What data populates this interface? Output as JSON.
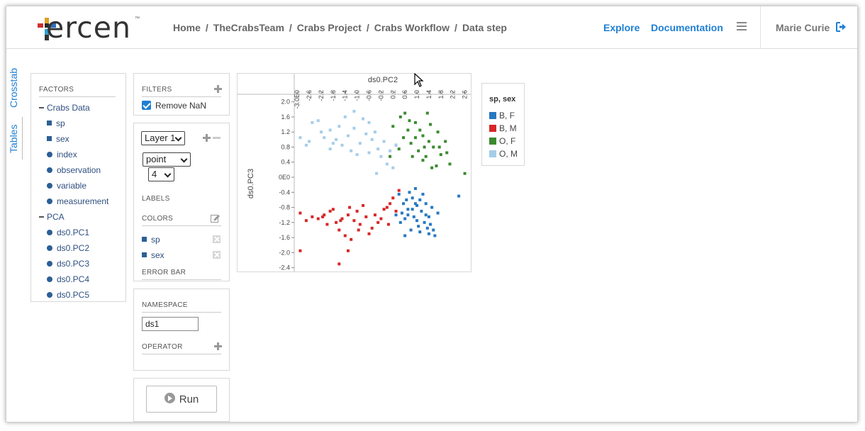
{
  "header": {
    "logo_text": "ercen",
    "logo_tm": "™",
    "breadcrumb": [
      "Home",
      "TheCrabsTeam",
      "Crabs Project",
      "Crabs Workflow",
      "Data step"
    ],
    "breadcrumb_sep": "/",
    "nav": {
      "explore": "Explore",
      "documentation": "Documentation"
    },
    "user": "Marie Curie"
  },
  "vtabs": {
    "crosstab": "Crosstab",
    "tables": "Tables"
  },
  "factors": {
    "title": "FACTORS",
    "groups": [
      {
        "label": "Crabs Data",
        "items": [
          {
            "label": "sp",
            "kind": "square"
          },
          {
            "label": "sex",
            "kind": "square"
          },
          {
            "label": "index",
            "kind": "dot"
          },
          {
            "label": "observation",
            "kind": "dot"
          },
          {
            "label": "variable",
            "kind": "dot"
          },
          {
            "label": "measurement",
            "kind": "dot"
          }
        ]
      },
      {
        "label": "PCA",
        "items": [
          {
            "label": "ds0.PC1",
            "kind": "dot"
          },
          {
            "label": "ds0.PC2",
            "kind": "dot"
          },
          {
            "label": "ds0.PC3",
            "kind": "dot"
          },
          {
            "label": "ds0.PC4",
            "kind": "dot"
          },
          {
            "label": "ds0.PC5",
            "kind": "dot"
          }
        ]
      }
    ]
  },
  "filters": {
    "title": "FILTERS",
    "remove_nan": "Remove NaN",
    "remove_nan_checked": true
  },
  "layer": {
    "layer_select": "Layer 1",
    "geom_select": "point",
    "size_select": "4",
    "labels_title": "LABELS",
    "colors_title": "COLORS",
    "colors": [
      "sp",
      "sex"
    ],
    "error_bar_title": "ERROR BAR"
  },
  "namespace": {
    "title": "NAMESPACE",
    "value": "ds1",
    "operator_title": "OPERATOR"
  },
  "run": {
    "label": "Run"
  },
  "legend": {
    "title": "sp, sex",
    "items": [
      {
        "label": "B, F",
        "color": "#2878c0"
      },
      {
        "label": "B, M",
        "color": "#d62728"
      },
      {
        "label": "O, F",
        "color": "#3a8a2e"
      },
      {
        "label": "O, M",
        "color": "#a6cde8"
      }
    ]
  },
  "chart_data": {
    "type": "scatter",
    "xlabel": "ds0.PC2",
    "ylabel": "ds0.PC3",
    "xlim": [
      -3.1,
      2.8
    ],
    "ylim": [
      -2.5,
      2.2
    ],
    "x_ticks": [
      "-3.0E0",
      "-2.6",
      "-2.2",
      "-1.8",
      "-1.4",
      "-1.0",
      "-0.6",
      "-0.2",
      "0.2",
      "0.6",
      "1.0",
      "1.4",
      "1.8",
      "2.2",
      "2.6"
    ],
    "y_ticks": [
      "2.0",
      "1.6",
      "1.2",
      "0.8",
      "0.4",
      "0E0",
      "-0.4",
      "-0.8",
      "-1.2",
      "-1.6",
      "-2.0",
      "-2.4"
    ],
    "series": [
      {
        "name": "B, F",
        "color": "#2878c0",
        "points": [
          [
            0.4,
            -0.45
          ],
          [
            0.55,
            -0.7
          ],
          [
            0.7,
            -0.85
          ],
          [
            0.85,
            -0.55
          ],
          [
            1.0,
            -0.75
          ],
          [
            1.15,
            -0.9
          ],
          [
            1.3,
            -1.0
          ],
          [
            0.9,
            -1.05
          ],
          [
            0.6,
            -1.1
          ],
          [
            1.05,
            -1.3
          ],
          [
            1.25,
            -1.2
          ],
          [
            1.4,
            -1.05
          ],
          [
            1.5,
            -0.8
          ],
          [
            0.75,
            -0.4
          ],
          [
            0.95,
            -0.3
          ],
          [
            1.1,
            -0.6
          ],
          [
            1.35,
            -1.35
          ],
          [
            0.5,
            -0.95
          ],
          [
            0.8,
            -1.4
          ],
          [
            1.6,
            -1.55
          ],
          [
            1.2,
            -0.45
          ],
          [
            0.65,
            -0.6
          ],
          [
            1.45,
            -1.25
          ],
          [
            1.0,
            -1.15
          ],
          [
            1.7,
            -0.95
          ],
          [
            2.4,
            -0.5
          ],
          [
            0.85,
            -0.85
          ],
          [
            1.3,
            -0.7
          ],
          [
            0.45,
            -1.2
          ],
          [
            1.55,
            -1.4
          ],
          [
            1.1,
            -1.45
          ],
          [
            0.7,
            -1.0
          ],
          [
            0.95,
            -0.7
          ],
          [
            1.4,
            -1.5
          ],
          [
            0.6,
            -1.55
          ],
          [
            0.3,
            -1.0
          ]
        ]
      },
      {
        "name": "B, M",
        "color": "#d62728",
        "points": [
          [
            -2.9,
            -0.95
          ],
          [
            -2.7,
            -1.15
          ],
          [
            -2.5,
            -1.05
          ],
          [
            -2.3,
            -1.1
          ],
          [
            -2.1,
            -1.0
          ],
          [
            -1.9,
            -0.9
          ],
          [
            -1.7,
            -1.2
          ],
          [
            -1.5,
            -1.1
          ],
          [
            -1.3,
            -1.0
          ],
          [
            -1.1,
            -1.15
          ],
          [
            -0.9,
            -1.25
          ],
          [
            -0.7,
            -1.05
          ],
          [
            -0.5,
            -1.35
          ],
          [
            -0.3,
            -1.2
          ],
          [
            -0.1,
            -0.85
          ],
          [
            0.1,
            -0.7
          ],
          [
            0.3,
            -0.9
          ],
          [
            -1.6,
            -1.4
          ],
          [
            -1.4,
            -1.55
          ],
          [
            -1.2,
            -1.65
          ],
          [
            -2.0,
            -1.25
          ],
          [
            -1.8,
            -0.85
          ],
          [
            -1.0,
            -0.9
          ],
          [
            -0.8,
            -0.75
          ],
          [
            -0.6,
            -1.5
          ],
          [
            -0.2,
            -1.1
          ],
          [
            0.0,
            -0.8
          ],
          [
            0.2,
            -0.55
          ],
          [
            -2.9,
            -1.95
          ],
          [
            -1.6,
            -2.3
          ],
          [
            -1.3,
            -1.95
          ],
          [
            -0.4,
            -1.0
          ],
          [
            -1.55,
            -1.15
          ],
          [
            -0.95,
            -1.4
          ],
          [
            0.4,
            -0.35
          ],
          [
            0.05,
            -1.25
          ],
          [
            -2.15,
            -1.05
          ],
          [
            -1.25,
            -0.8
          ]
        ]
      },
      {
        "name": "O, F",
        "color": "#3a8a2e",
        "points": [
          [
            0.2,
            1.35
          ],
          [
            0.45,
            1.6
          ],
          [
            0.7,
            1.25
          ],
          [
            0.95,
            1.45
          ],
          [
            1.2,
            1.1
          ],
          [
            1.45,
            1.4
          ],
          [
            1.7,
            1.2
          ],
          [
            1.95,
            0.95
          ],
          [
            0.8,
            0.9
          ],
          [
            1.05,
            0.7
          ],
          [
            1.3,
            0.55
          ],
          [
            1.55,
            0.8
          ],
          [
            1.8,
            0.6
          ],
          [
            2.1,
            0.35
          ],
          [
            2.6,
            0.1
          ],
          [
            0.55,
            1.05
          ],
          [
            0.3,
            0.85
          ],
          [
            1.1,
            1.25
          ],
          [
            1.4,
            0.95
          ],
          [
            1.65,
            0.3
          ],
          [
            0.85,
            0.55
          ],
          [
            1.2,
            0.45
          ],
          [
            0.6,
            1.7
          ],
          [
            1.35,
            1.7
          ],
          [
            1.75,
            0.8
          ],
          [
            2.0,
            0.65
          ],
          [
            1.5,
            0.25
          ],
          [
            0.95,
            1.05
          ],
          [
            1.25,
            0.8
          ],
          [
            0.4,
            0.75
          ],
          [
            0.75,
            1.5
          ],
          [
            0.1,
            0.55
          ]
        ]
      },
      {
        "name": "O, M",
        "color": "#a6cde8",
        "points": [
          [
            -2.9,
            1.05
          ],
          [
            -2.6,
            0.95
          ],
          [
            -2.3,
            1.5
          ],
          [
            -2.1,
            1.05
          ],
          [
            -1.9,
            1.25
          ],
          [
            -1.7,
            1.0
          ],
          [
            -1.5,
            0.85
          ],
          [
            -1.3,
            1.1
          ],
          [
            -1.1,
            1.3
          ],
          [
            -0.9,
            0.9
          ],
          [
            -0.7,
            1.15
          ],
          [
            -0.5,
            1.0
          ],
          [
            -0.3,
            0.75
          ],
          [
            -0.1,
            0.95
          ],
          [
            0.1,
            0.7
          ],
          [
            0.3,
            0.85
          ],
          [
            -1.6,
            1.35
          ],
          [
            -1.2,
            0.7
          ],
          [
            -0.8,
            1.55
          ],
          [
            -0.6,
            0.65
          ],
          [
            -2.2,
            1.2
          ],
          [
            -1.8,
            0.9
          ],
          [
            -1.0,
            0.6
          ],
          [
            -0.4,
            1.2
          ],
          [
            0.0,
            0.35
          ],
          [
            -1.4,
            1.6
          ],
          [
            -2.5,
            1.45
          ],
          [
            -0.2,
            0.55
          ],
          [
            -1.1,
            1.75
          ],
          [
            -0.6,
            1.45
          ],
          [
            0.2,
            0.25
          ],
          [
            -0.35,
            0.1
          ],
          [
            -1.9,
            0.75
          ],
          [
            -2.7,
            0.85
          ]
        ]
      }
    ]
  }
}
